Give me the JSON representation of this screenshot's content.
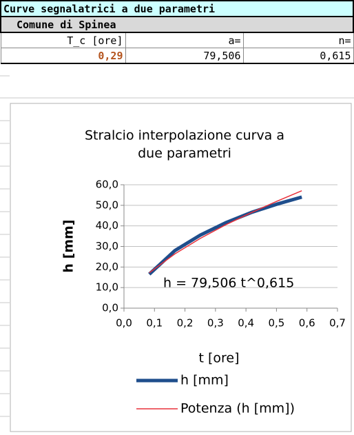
{
  "table": {
    "title": "Curve segnalatrici a due parametri",
    "subtitle": "Comune di Spinea",
    "header": [
      "T_c [ore]",
      "a=",
      "n="
    ],
    "row": [
      "0,29",
      "79,506",
      "0,615"
    ]
  },
  "chart_data": {
    "type": "line",
    "title": "Stralcio interpolazione curva a due parametri",
    "x_label": "t [ore]",
    "y_label": "h [mm]",
    "annotation": "h = 79,506 t^0,615",
    "x": [
      0.083,
      0.167,
      0.25,
      0.333,
      0.417,
      0.5,
      0.583
    ],
    "series": [
      {
        "name": "h [mm]",
        "color": "#1f4e8c",
        "values": [
          16.5,
          28,
          35.5,
          41.5,
          46.5,
          50.5,
          54
        ]
      },
      {
        "name": "Potenza (h [mm])",
        "color": "#e8303a",
        "values": [
          17.2,
          26.4,
          33.9,
          40.5,
          46.4,
          51.9,
          57.1
        ]
      }
    ],
    "xlim": [
      0,
      0.7
    ],
    "ylim": [
      0,
      60
    ],
    "xticks": [
      {
        "value": 0,
        "label": "0,0"
      },
      {
        "value": 0.1,
        "label": "0,1"
      },
      {
        "value": 0.2,
        "label": "0,2"
      },
      {
        "value": 0.3,
        "label": "0,3"
      },
      {
        "value": 0.4,
        "label": "0,4"
      },
      {
        "value": 0.5,
        "label": "0,5"
      },
      {
        "value": 0.6,
        "label": "0,6"
      },
      {
        "value": 0.7,
        "label": "0,7"
      }
    ],
    "yticks": [
      {
        "value": 0,
        "label": "0,0"
      },
      {
        "value": 10,
        "label": "10,0"
      },
      {
        "value": 20,
        "label": "20,0"
      },
      {
        "value": 30,
        "label": "30,0"
      },
      {
        "value": 40,
        "label": "40,0"
      },
      {
        "value": 50,
        "label": "50,0"
      },
      {
        "value": 60,
        "label": "60,0"
      }
    ],
    "grid": true
  }
}
